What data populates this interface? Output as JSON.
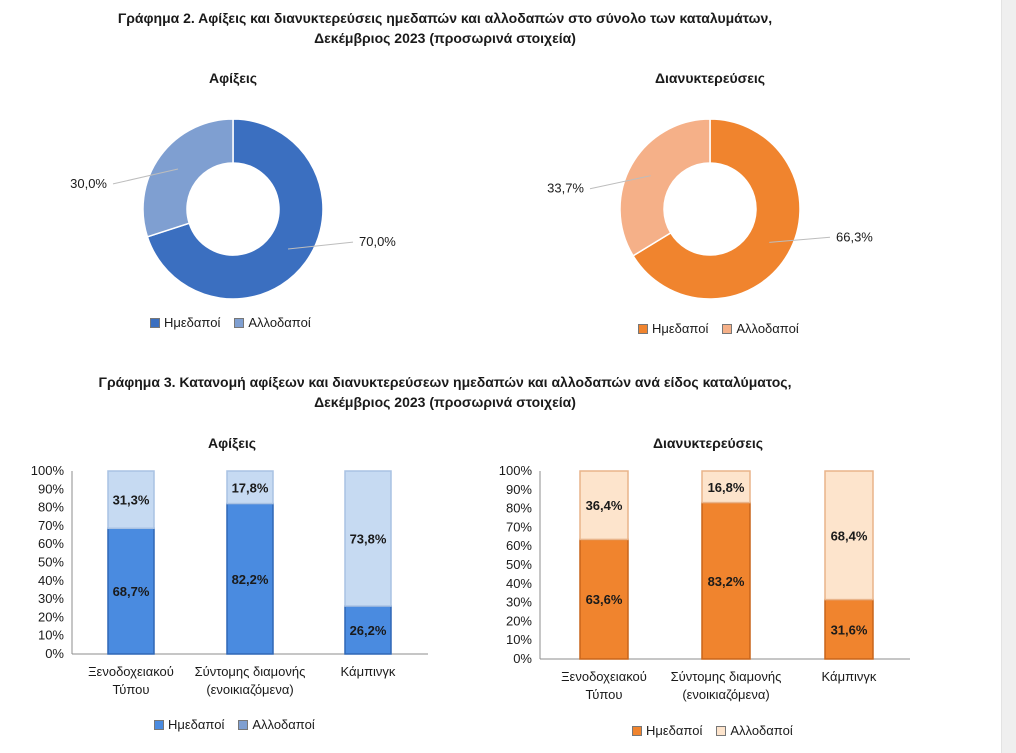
{
  "figure2": {
    "title_line1": "Γράφημα 2. Αφίξεις και διανυκτερεύσεις ημεδαπών και αλλοδαπών στο σύνολο των καταλυμάτων,",
    "title_line2": "Δεκέμβριος 2023  (προσωρινά στοιχεία)"
  },
  "figure3": {
    "title_line1": "Γράφημα 3. Κατανομή αφίξεων και διανυκτερεύσεων ημεδαπών και αλλοδαπών ανά είδος καταλύματος,",
    "title_line2": "Δεκέμβριος 2023 (προσωρινά στοιχεία)"
  },
  "legend": {
    "domestic": "Ημεδαποί",
    "foreign": "Αλλοδαποί"
  },
  "colors": {
    "blue_domestic": "#3b6fc0",
    "blue_foreign": "#7f9fd1",
    "blue_bar_domestic": "#4a8be0",
    "blue_bar_foreign": "#c6daf2",
    "orange_domestic": "#f0842e",
    "orange_foreign": "#f5b088",
    "orange_bar_domestic": "#f0842e",
    "orange_bar_foreign": "#fde4cc"
  },
  "chart_data": [
    {
      "type": "pie",
      "title": "Αφίξεις",
      "donut": true,
      "series": [
        {
          "name": "Ημεδαποί",
          "value": 70.0,
          "label": "70,0%"
        },
        {
          "name": "Αλλοδαποί",
          "value": 30.0,
          "label": "30,0%"
        }
      ],
      "legend_position": "bottom"
    },
    {
      "type": "pie",
      "title": "Διανυκτερεύσεις",
      "donut": true,
      "series": [
        {
          "name": "Ημεδαποί",
          "value": 66.3,
          "label": "66,3%"
        },
        {
          "name": "Αλλοδαποί",
          "value": 33.7,
          "label": "33,7%"
        }
      ],
      "legend_position": "bottom"
    },
    {
      "type": "bar",
      "stacked": "percent",
      "title": "Αφίξεις",
      "categories": [
        "Ξενοδοχειακού Τύπου",
        "Σύντομης διαμονής (ενοικιαζόμενα)",
        "Κάμπινγκ"
      ],
      "category_lines": [
        [
          "Ξενοδοχειακού",
          "Τύπου"
        ],
        [
          "Σύντομης διαμονής",
          "(ενοικιαζόμενα)"
        ],
        [
          "Κάμπινγκ"
        ]
      ],
      "series": [
        {
          "name": "Ημεδαποί",
          "values": [
            68.7,
            82.2,
            26.2
          ],
          "labels": [
            "68,7%",
            "82,2%",
            "26,2%"
          ]
        },
        {
          "name": "Αλλοδαποί",
          "values": [
            31.3,
            17.8,
            73.8
          ],
          "labels": [
            "31,3%",
            "17,8%",
            "73,8%"
          ]
        }
      ],
      "ylim": [
        0,
        100
      ],
      "yticks": [
        "0%",
        "10%",
        "20%",
        "30%",
        "40%",
        "50%",
        "60%",
        "70%",
        "80%",
        "90%",
        "100%"
      ],
      "grid": false,
      "legend_position": "bottom"
    },
    {
      "type": "bar",
      "stacked": "percent",
      "title": "Διανυκτερεύσεις",
      "categories": [
        "Ξενοδοχειακού Τύπου",
        "Σύντομης διαμονής (ενοικιαζόμενα)",
        "Κάμπινγκ"
      ],
      "category_lines": [
        [
          "Ξενοδοχειακού",
          "Τύπου"
        ],
        [
          "Σύντομης διαμονής",
          "(ενοικιαζόμενα)"
        ],
        [
          "Κάμπινγκ"
        ]
      ],
      "series": [
        {
          "name": "Ημεδαποί",
          "values": [
            63.6,
            83.2,
            31.6
          ],
          "labels": [
            "63,6%",
            "83,2%",
            "31,6%"
          ]
        },
        {
          "name": "Αλλοδαποί",
          "values": [
            36.4,
            16.8,
            68.4
          ],
          "labels": [
            "36,4%",
            "16,8%",
            "68,4%"
          ]
        }
      ],
      "ylim": [
        0,
        100
      ],
      "yticks": [
        "0%",
        "10%",
        "20%",
        "30%",
        "40%",
        "50%",
        "60%",
        "70%",
        "80%",
        "90%",
        "100%"
      ],
      "grid": false,
      "legend_position": "bottom"
    }
  ]
}
